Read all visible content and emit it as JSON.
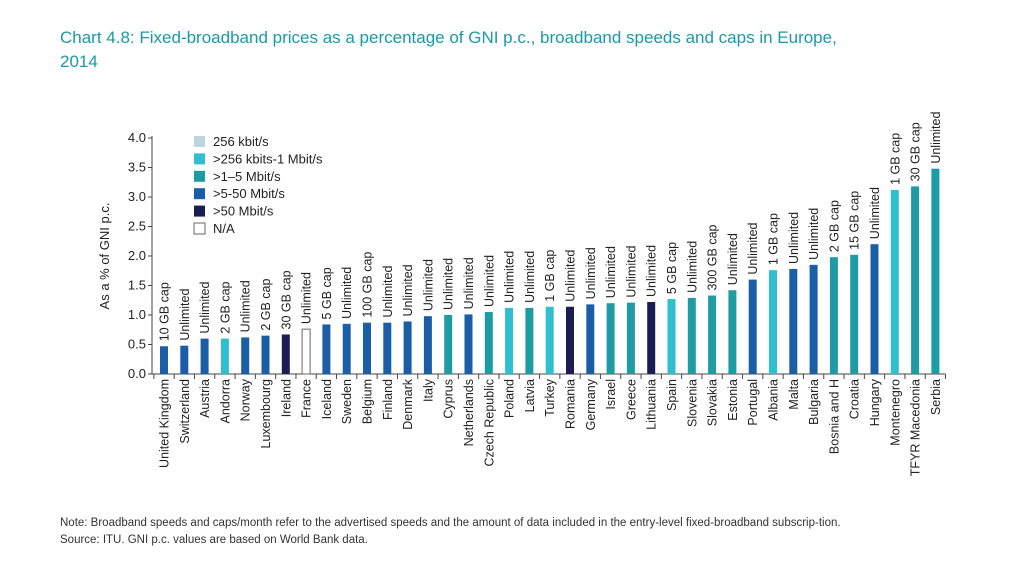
{
  "title_line1": "Chart 4.8:   Fixed-broadband prices as a percentage of GNI p.c., broadband speeds and caps in Europe,",
  "title_line2": "2014",
  "colors": {
    "title": "#1a9aa8",
    "256 kbit/s": "#bcd6df",
    ">256 kbits-1 Mbit/s": "#2fbfd1",
    ">1-5 Mbit/s": "#1f9ba3",
    ">5-50 Mbit/s": "#1a5ea8",
    ">50 Mbit/s": "#1b1e55",
    "N/A": "#ffffff"
  },
  "chart_data": {
    "type": "bar",
    "ylabel": "As a % of GNI p.c.",
    "ylim": [
      0,
      4.0
    ],
    "yticks": [
      "0.0",
      "0.5",
      "1.0",
      "1.5",
      "2.0",
      "2.5",
      "3.0",
      "3.5",
      "4.0"
    ],
    "grid": false,
    "legend_position": "top-left",
    "legend": [
      "256 kbit/s",
      ">256 kbits-1 Mbit/s",
      ">1–5 Mbit/s",
      ">5-50 Mbit/s",
      ">50 Mbit/s",
      "N/A"
    ],
    "legend_keys": [
      "256 kbit/s",
      ">256 kbits-1 Mbit/s",
      ">1-5 Mbit/s",
      ">5-50 Mbit/s",
      ">50 Mbit/s",
      "N/A"
    ],
    "categories": [
      "United Kingdom",
      "Switzerland",
      "Austria",
      "Andorra",
      "Norway",
      "Luxembourg",
      "Ireland",
      "France",
      "Iceland",
      "Sweden",
      "Belgium",
      "Finland",
      "Denmark",
      "Italy",
      "Cyprus",
      "Netherlands",
      "Czech Republic",
      "Poland",
      "Latvia",
      "Turkey",
      "Romania",
      "Germany",
      "Israel",
      "Greece",
      "Lithuania",
      "Spain",
      "Slovenia",
      "Slovakia",
      "Estonia",
      "Portugal",
      "Albania",
      "Malta",
      "Bulgaria",
      "Bosnia and H",
      "Croatia",
      "Hungary",
      "Montenegro",
      "TFYR Macedonia",
      "Serbia"
    ],
    "values": [
      0.47,
      0.48,
      0.6,
      0.6,
      0.62,
      0.65,
      0.67,
      0.76,
      0.84,
      0.85,
      0.87,
      0.87,
      0.89,
      0.98,
      1.0,
      1.01,
      1.05,
      1.12,
      1.12,
      1.14,
      1.14,
      1.18,
      1.2,
      1.21,
      1.22,
      1.27,
      1.29,
      1.33,
      1.42,
      1.6,
      1.76,
      1.78,
      1.85,
      1.98,
      2.02,
      2.2,
      3.12,
      3.18,
      3.48
    ],
    "caps": [
      "10 GB cap",
      "Unlimited",
      "Unlimited",
      "2 GB cap",
      "Unlimited",
      "2 GB cap",
      "30 GB cap",
      "Unlimited",
      "5 GB cap",
      "Unlimited",
      "100 GB cap",
      "Unlimited",
      "Unlimited",
      "Unlimited",
      "Unlimited",
      "Unlimited",
      "Unlimited",
      "Unlimited",
      "Unlimited",
      "1 GB cap",
      "Unlimited",
      "Unlimited",
      "Unlimited",
      "Unlimited",
      "Unlimited",
      "5 GB cap",
      "Unlimited",
      "300 GB cap",
      "Unlimited",
      "Unlimited",
      "1 GB cap",
      "Unlimited",
      "Unlimited",
      "2 GB cap",
      "15 GB cap",
      "Unlimited",
      "1 GB cap",
      "30 GB cap",
      "Unlimited"
    ],
    "speed": [
      ">5-50 Mbit/s",
      ">5-50 Mbit/s",
      ">5-50 Mbit/s",
      ">256 kbits-1 Mbit/s",
      ">5-50 Mbit/s",
      ">5-50 Mbit/s",
      ">50 Mbit/s",
      "N/A",
      ">5-50 Mbit/s",
      ">5-50 Mbit/s",
      ">5-50 Mbit/s",
      ">5-50 Mbit/s",
      ">5-50 Mbit/s",
      ">5-50 Mbit/s",
      ">1-5 Mbit/s",
      ">5-50 Mbit/s",
      ">1-5 Mbit/s",
      ">256 kbits-1 Mbit/s",
      ">1-5 Mbit/s",
      ">256 kbits-1 Mbit/s",
      ">50 Mbit/s",
      ">5-50 Mbit/s",
      ">1-5 Mbit/s",
      ">1-5 Mbit/s",
      ">50 Mbit/s",
      ">256 kbits-1 Mbit/s",
      ">1-5 Mbit/s",
      ">1-5 Mbit/s",
      ">1-5 Mbit/s",
      ">5-50 Mbit/s",
      ">256 kbits-1 Mbit/s",
      ">5-50 Mbit/s",
      ">5-50 Mbit/s",
      ">1-5 Mbit/s",
      ">1-5 Mbit/s",
      ">5-50 Mbit/s",
      ">256 kbits-1 Mbit/s",
      ">1-5 Mbit/s",
      ">1-5 Mbit/s"
    ]
  },
  "note": "Note: Broadband speeds and caps/month refer to the advertised speeds and the amount of data included in the entry-level fixed-broadband subscrip-­tion.",
  "source": "Source: ITU. GNI p.c. values are based on World Bank data."
}
